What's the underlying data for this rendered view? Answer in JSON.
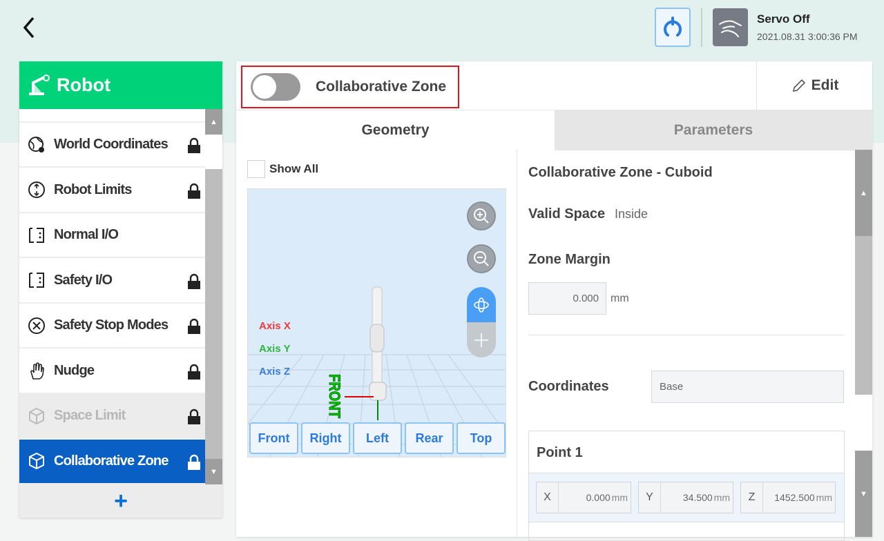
{
  "header": {
    "servo_status": "Servo Off",
    "datetime": "2021.08.31 3:00:36 PM"
  },
  "sidebar": {
    "title": "Robot",
    "items": [
      {
        "label": "World Coordinates",
        "icon": "globe-gear-icon",
        "locked": true,
        "state": "normal"
      },
      {
        "label": "Robot Limits",
        "icon": "limits-icon",
        "locked": true,
        "state": "normal"
      },
      {
        "label": "Normal I/O",
        "icon": "io-icon",
        "locked": false,
        "state": "normal"
      },
      {
        "label": "Safety I/O",
        "icon": "io-icon",
        "locked": true,
        "state": "normal"
      },
      {
        "label": "Safety Stop Modes",
        "icon": "stop-circle-icon",
        "locked": true,
        "state": "normal"
      },
      {
        "label": "Nudge",
        "icon": "hand-icon",
        "locked": true,
        "state": "normal"
      },
      {
        "label": "Space Limit",
        "icon": "cube-icon",
        "locked": true,
        "state": "disabled"
      },
      {
        "label": "Collaborative Zone",
        "icon": "cube-icon",
        "locked": true,
        "state": "selected"
      }
    ],
    "add_label": "+"
  },
  "panel": {
    "zone_toggle_label": "Collaborative Zone",
    "zone_toggle_on": false,
    "edit_label": "Edit",
    "tabs": [
      {
        "label": "Geometry",
        "active": true
      },
      {
        "label": "Parameters",
        "active": false
      }
    ],
    "show_all_label": "Show All",
    "show_all_checked": false,
    "axis_labels": {
      "x": "Axis X",
      "y": "Axis Y",
      "z": "Axis Z"
    },
    "front_label": "FRONT",
    "view_buttons": [
      "Front",
      "Right",
      "Left",
      "Rear",
      "Top"
    ],
    "details": {
      "title": "Collaborative Zone - Cuboid",
      "valid_space_label": "Valid Space",
      "valid_space_value": "Inside",
      "zone_margin_label": "Zone Margin",
      "zone_margin_value": "0.000",
      "zone_margin_unit": "mm",
      "coordinates_label": "Coordinates",
      "coordinates_value": "Base",
      "point1": {
        "title": "Point 1",
        "x_label": "X",
        "x": "0.000",
        "y_label": "Y",
        "y": "34.500",
        "z_label": "Z",
        "z": "1452.500",
        "unit": "mm"
      }
    }
  },
  "colors": {
    "accent_green": "#00d27a",
    "selected_blue": "#0a5fc4",
    "highlight_red": "#e0161e",
    "button_blue": "#2a7be0"
  }
}
